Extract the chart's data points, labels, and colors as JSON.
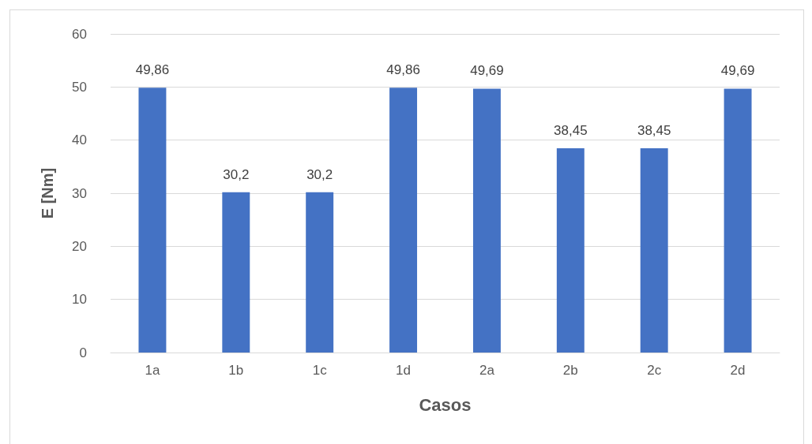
{
  "chart_data": {
    "type": "bar",
    "xlabel": "Casos",
    "ylabel": "E [Nm]",
    "categories": [
      "1a",
      "1b",
      "1c",
      "1d",
      "2a",
      "2b",
      "2c",
      "2d"
    ],
    "values": [
      49.86,
      30.2,
      30.2,
      49.86,
      49.69,
      38.45,
      38.45,
      49.69
    ],
    "value_labels": [
      "49,86",
      "30,2",
      "30,2",
      "49,86",
      "49,69",
      "38,45",
      "38,45",
      "49,69"
    ],
    "color": "#4472c4",
    "ylim": [
      0,
      60
    ],
    "yticks": [
      0,
      10,
      20,
      30,
      40,
      50,
      60
    ],
    "grid": "y"
  }
}
